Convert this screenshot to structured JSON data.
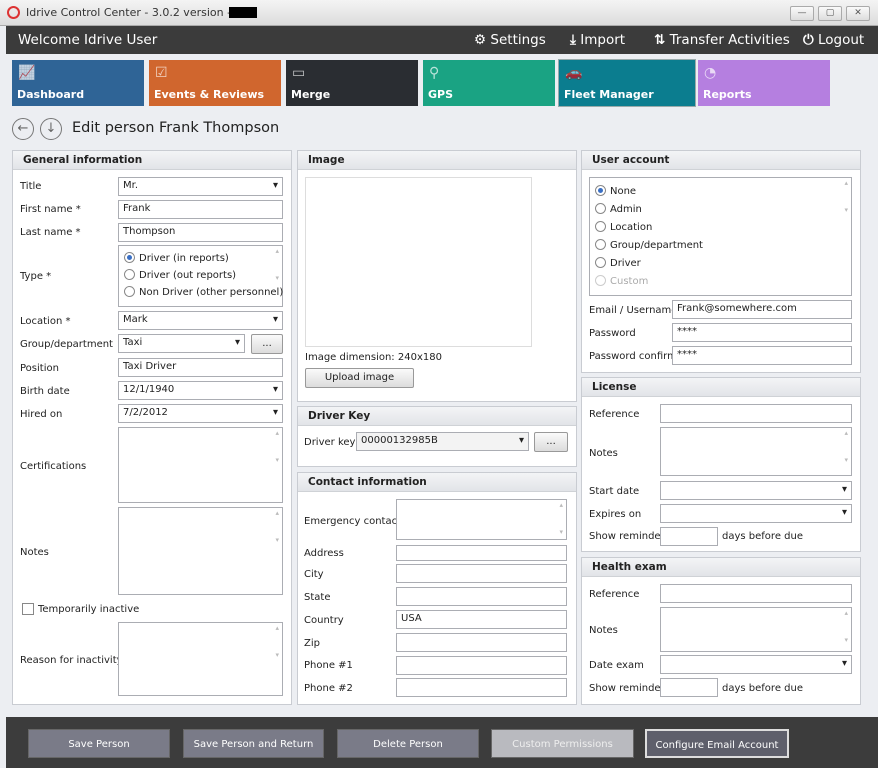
{
  "window": {
    "title": "Idrive Control Center - 3.0.2 version -",
    "min": "—",
    "max": "▢",
    "close": "✕"
  },
  "header": {
    "welcome": "Welcome Idrive User",
    "settings": "Settings",
    "import": "Import",
    "transfer": "Transfer Activities",
    "logout": "Logout"
  },
  "tiles": [
    {
      "label": "Dashboard",
      "color": "#2f6496",
      "icon": "chart-icon"
    },
    {
      "label": "Events & Reviews",
      "color": "#d0662e",
      "icon": "clipboard-icon"
    },
    {
      "label": "Merge",
      "color": "#2a2d32",
      "icon": "merge-icon"
    },
    {
      "label": "GPS",
      "color": "#1aa383",
      "icon": "map-pin-icon"
    },
    {
      "label": "Fleet Manager",
      "color": "#0b7d8f",
      "icon": "cars-icon"
    },
    {
      "label": "Reports",
      "color": "#b57fe0",
      "icon": "pie-chart-icon"
    }
  ],
  "page": {
    "title": "Edit person Frank Thompson"
  },
  "general": {
    "heading": "General information",
    "title_label": "Title",
    "title": "Mr.",
    "first_label": "First name *",
    "first": "Frank",
    "last_label": "Last name *",
    "last": "Thompson",
    "type_label": "Type *",
    "type_options": [
      "Driver (in reports)",
      "Driver (out reports)",
      "Non Driver (other personnel)"
    ],
    "location_label": "Location *",
    "location": "Mark",
    "group_label": "Group/department",
    "group": "Taxi",
    "browse": "...",
    "position_label": "Position",
    "position": "Taxi Driver",
    "birth_label": "Birth date",
    "birth": "12/1/1940",
    "hired_label": "Hired on",
    "hired": "7/2/2012",
    "cert_label": "Certifications",
    "notes_label": "Notes",
    "inactive_label": "Temporarily inactive",
    "reason_label": "Reason for inactivity"
  },
  "image": {
    "heading": "Image",
    "dimension_label": "Image dimension:",
    "dimension": "240x180",
    "upload": "Upload image"
  },
  "driver_key": {
    "heading": "Driver Key",
    "label": "Driver key",
    "value": "00000132985B",
    "browse": "..."
  },
  "contact": {
    "heading": "Contact information",
    "emergency": "Emergency contact",
    "address": "Address",
    "city": "City",
    "state": "State",
    "country": "Country",
    "country_value": "USA",
    "zip": "Zip",
    "phone1": "Phone #1",
    "phone2": "Phone #2"
  },
  "account": {
    "heading": "User account",
    "options": [
      "None",
      "Admin",
      "Location",
      "Group/department",
      "Driver",
      "Custom"
    ],
    "email_label": "Email / Username",
    "email": "Frank@somewhere.com",
    "password_label": "Password",
    "password": "****",
    "confirm_label": "Password confirm",
    "confirm": "****"
  },
  "license": {
    "heading": "License",
    "reference": "Reference",
    "notes": "Notes",
    "start": "Start date",
    "expires": "Expires on",
    "reminder": "Show reminder",
    "days": "days before due"
  },
  "health": {
    "heading": "Health exam",
    "reference": "Reference",
    "notes": "Notes",
    "date": "Date exam",
    "reminder": "Show reminder",
    "days": "days before due"
  },
  "footer": {
    "save": "Save Person",
    "save_return": "Save Person and Return",
    "delete": "Delete Person",
    "custom": "Custom Permissions",
    "email": "Configure Email Account"
  }
}
